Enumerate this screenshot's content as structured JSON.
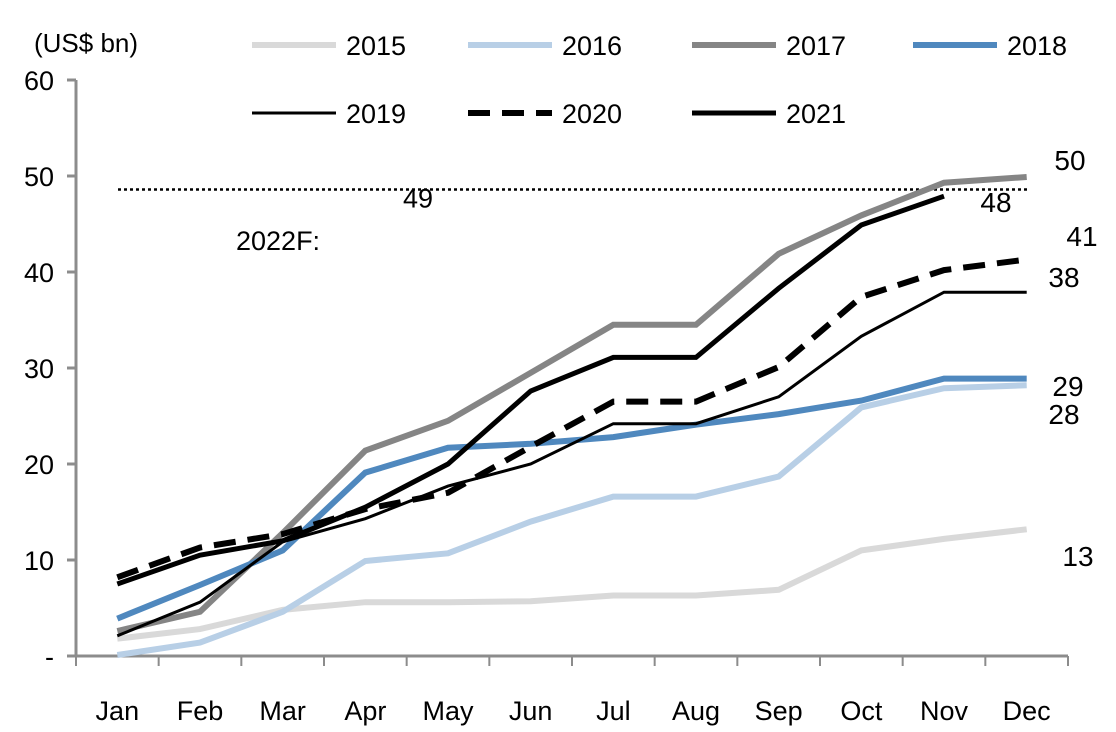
{
  "chart_data": {
    "type": "line",
    "title": "",
    "unit_label": "(US$ bn)",
    "xlabel": "",
    "ylabel": "(US$ bn)",
    "ylim": [
      0,
      60
    ],
    "y_ticks": [
      0,
      10,
      20,
      30,
      40,
      50,
      60
    ],
    "y_tick_labels": [
      "-",
      "10",
      "20",
      "30",
      "40",
      "50",
      "60"
    ],
    "categories": [
      "Jan",
      "Feb",
      "Mar",
      "Apr",
      "May",
      "Jun",
      "Jul",
      "Aug",
      "Sep",
      "Oct",
      "Nov",
      "Dec"
    ],
    "grid": false,
    "legend_position": "top",
    "series": [
      {
        "name": "2015",
        "color": "#d9d9d9",
        "style": "solid",
        "width": 6,
        "values": [
          1.8,
          2.8,
          4.8,
          5.6,
          5.6,
          5.7,
          6.3,
          6.3,
          6.9,
          11.0,
          12.2,
          13.2
        ],
        "end_label": "13"
      },
      {
        "name": "2016",
        "color": "#b8cfe6",
        "style": "solid",
        "width": 6,
        "values": [
          0.1,
          1.4,
          4.6,
          9.9,
          10.7,
          14.0,
          16.6,
          16.6,
          18.7,
          25.9,
          27.9,
          28.2
        ],
        "end_label": "28"
      },
      {
        "name": "2017",
        "color": "#858585",
        "style": "solid",
        "width": 6,
        "values": [
          2.6,
          4.6,
          12.8,
          21.4,
          24.5,
          29.5,
          34.5,
          34.5,
          41.9,
          45.9,
          49.3,
          49.9
        ],
        "end_label": "50"
      },
      {
        "name": "2018",
        "color": "#4f88be",
        "style": "solid",
        "width": 6,
        "values": [
          3.9,
          7.4,
          11.0,
          19.1,
          21.7,
          22.1,
          22.8,
          24.1,
          25.2,
          26.6,
          28.9,
          28.9
        ],
        "end_label": "29"
      },
      {
        "name": "2019",
        "color": "#000000",
        "style": "solid",
        "width": 3,
        "values": [
          2.1,
          5.6,
          11.9,
          14.3,
          17.7,
          20.0,
          24.2,
          24.2,
          27.0,
          33.3,
          37.9,
          37.9
        ],
        "end_label": "38"
      },
      {
        "name": "2020",
        "color": "#000000",
        "style": "dashed",
        "width": 6,
        "values": [
          8.2,
          11.3,
          12.7,
          15.3,
          17.0,
          21.8,
          26.5,
          26.5,
          30.1,
          37.4,
          40.2,
          41.3
        ],
        "end_label": "41"
      },
      {
        "name": "2021",
        "color": "#000000",
        "style": "solid",
        "width": 5,
        "values": [
          7.5,
          10.5,
          12.0,
          15.5,
          20.0,
          27.6,
          31.1,
          31.1,
          38.3,
          44.9,
          47.9,
          null
        ],
        "end_label": "48"
      }
    ],
    "reference_line": {
      "name": "2022F",
      "label": "2022F:",
      "value": 48.6,
      "value_label": "49",
      "style": "dotted"
    }
  }
}
